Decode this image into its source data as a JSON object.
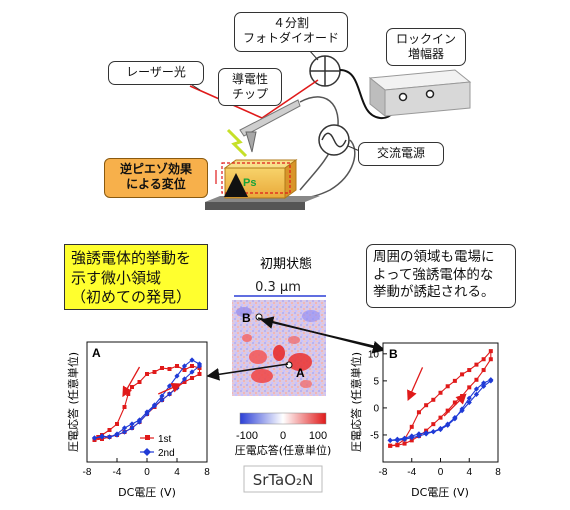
{
  "callouts": {
    "photodiode": "４分割\nフォトダイオード",
    "lockin": "ロックイン\n増幅器",
    "laser": "レーザー光",
    "tip": "導電性\nチップ",
    "ac_source": "交流電源",
    "piezo": "逆ピエゾ効果\nによる変位",
    "ps": "Ps"
  },
  "notes": {
    "left": "強誘電体的挙動を\n示す微小領域\n（初めての発見）",
    "right": "周囲の領域も電場に\nよって強誘電体的な\n挙動が誘起される。"
  },
  "map": {
    "title": "初期状態",
    "scale": "0.3 µm",
    "point_a": "A",
    "point_b": "B",
    "colorbar_ticks": [
      "-100",
      "0",
      "100"
    ],
    "colorbar_label": "圧電応答(任意単位)",
    "material": "SrTaO₂N",
    "colors": {
      "low": "#2b3fd6",
      "mid": "#ffffff",
      "high": "#e01a1a"
    }
  },
  "chart_data": [
    {
      "type": "line",
      "panel_label": "A",
      "xlabel": "DC電圧 (V)",
      "ylabel": "圧電応答 (任意単位)",
      "xlim": [
        -8,
        8
      ],
      "ylim": [
        -6,
        6
      ],
      "xticks": [
        -8,
        -4,
        0,
        4,
        8
      ],
      "xtick_labels": [
        "-8",
        "-4",
        "0",
        "4",
        "8"
      ],
      "yticks": [],
      "legend": "bottom-right",
      "series": [
        {
          "name": "1st",
          "color": "#e01a1a",
          "x": [
            -7,
            -6.5,
            -6,
            -5,
            -4,
            -3,
            -2.5,
            -2,
            -1,
            0,
            1,
            2,
            3,
            4,
            5,
            6,
            7,
            7,
            6,
            5,
            4,
            3,
            2,
            1,
            0,
            -1,
            -2,
            -3,
            -4,
            -5,
            -6,
            -7
          ],
          "y": [
            -3.8,
            -3.5,
            -3.3,
            -2.8,
            -2.2,
            -0.5,
            0.8,
            1.5,
            2.0,
            2.8,
            3.0,
            3.4,
            3.3,
            3.6,
            3.2,
            3.6,
            3.4,
            2.8,
            2.4,
            2.0,
            1.5,
            0.8,
            0.2,
            -0.5,
            -1.2,
            -2.0,
            -2.6,
            -3.0,
            -3.3,
            -3.5,
            -3.7,
            -3.8
          ]
        },
        {
          "name": "2nd",
          "color": "#1f3ad6",
          "x": [
            -7,
            -6,
            -5,
            -4,
            -3,
            -2,
            -1,
            0,
            1,
            2,
            3,
            4,
            5,
            6,
            7,
            7,
            6,
            5,
            4,
            3,
            2,
            1,
            0,
            -1,
            -2,
            -3,
            -4,
            -5,
            -6,
            -7
          ],
          "y": [
            -3.6,
            -3.4,
            -3.5,
            -3.2,
            -2.6,
            -2.2,
            -1.8,
            -1.0,
            -0.3,
            0.6,
            1.6,
            2.6,
            3.6,
            4.2,
            3.8,
            3.6,
            3.0,
            2.3,
            1.4,
            0.8,
            0.2,
            -0.4,
            -1.2,
            -2.0,
            -2.6,
            -3.0,
            -3.3,
            -3.5,
            -3.5,
            -3.6
          ]
        }
      ],
      "annotations": [
        {
          "type": "arrow",
          "color": "#e01a1a",
          "from": [
            -1,
            3.5
          ],
          "to": [
            -3.2,
            0.6
          ]
        },
        {
          "type": "arrow",
          "color": "#e01a1a",
          "from": [
            1.5,
            0.8
          ],
          "to": [
            4.5,
            1.8
          ]
        }
      ]
    },
    {
      "type": "line",
      "panel_label": "B",
      "xlabel": "DC電圧 (V)",
      "ylabel": "圧電応答 (任意単位)",
      "xlim": [
        -8,
        8
      ],
      "ylim": [
        -10,
        12
      ],
      "xticks": [
        -8,
        -4,
        0,
        4,
        8
      ],
      "xtick_labels": [
        "-8",
        "-4",
        "0",
        "4",
        "8"
      ],
      "yticks": [
        -5,
        0,
        5,
        10
      ],
      "ytick_labels": [
        "-5",
        "0",
        "5",
        "10"
      ],
      "legend": "none",
      "series": [
        {
          "name": "",
          "color": "#e01a1a",
          "x": [
            -7,
            -6,
            -5,
            -4,
            -3,
            -2,
            -1,
            0,
            1,
            2,
            3,
            4,
            5,
            6,
            7,
            7,
            6,
            5,
            4,
            3,
            2,
            1,
            0,
            -1,
            -2,
            -3,
            -4,
            -5,
            -6,
            -7
          ],
          "y": [
            -7.0,
            -6.8,
            -5.8,
            -3.5,
            -0.8,
            0.5,
            1.5,
            2.8,
            4.0,
            5.0,
            6.2,
            7.0,
            8.0,
            9.0,
            10.5,
            9.0,
            7.0,
            5.2,
            3.8,
            2.2,
            1.0,
            -0.5,
            -1.8,
            -3.0,
            -4.2,
            -5.2,
            -6.0,
            -6.6,
            -6.9,
            -7.0
          ]
        },
        {
          "name": "",
          "color": "#1f3ad6",
          "x": [
            -7,
            -6,
            -5,
            -4,
            -3,
            -2,
            -1,
            0,
            1,
            2,
            3,
            4,
            5,
            6,
            7,
            7,
            6,
            5,
            4,
            3,
            2,
            1,
            0,
            -1,
            -2,
            -3,
            -4,
            -5,
            -6,
            -7
          ],
          "y": [
            -6.0,
            -5.8,
            -5.6,
            -5.2,
            -4.8,
            -4.6,
            -4.4,
            -4.0,
            -3.2,
            -2.0,
            -0.2,
            1.8,
            3.5,
            4.6,
            5.2,
            5.0,
            4.0,
            2.5,
            1.0,
            -0.5,
            -1.8,
            -3.0,
            -3.8,
            -4.4,
            -4.8,
            -5.2,
            -5.5,
            -5.8,
            -6.0,
            -6.0
          ]
        }
      ],
      "annotations": [
        {
          "type": "arrow",
          "color": "#e01a1a",
          "from": [
            -2.5,
            7.5
          ],
          "to": [
            -4.5,
            1.5
          ]
        },
        {
          "type": "arrow",
          "color": "#e01a1a",
          "from": [
            0.5,
            -1.5
          ],
          "to": [
            3.5,
            2.5
          ]
        }
      ]
    }
  ]
}
